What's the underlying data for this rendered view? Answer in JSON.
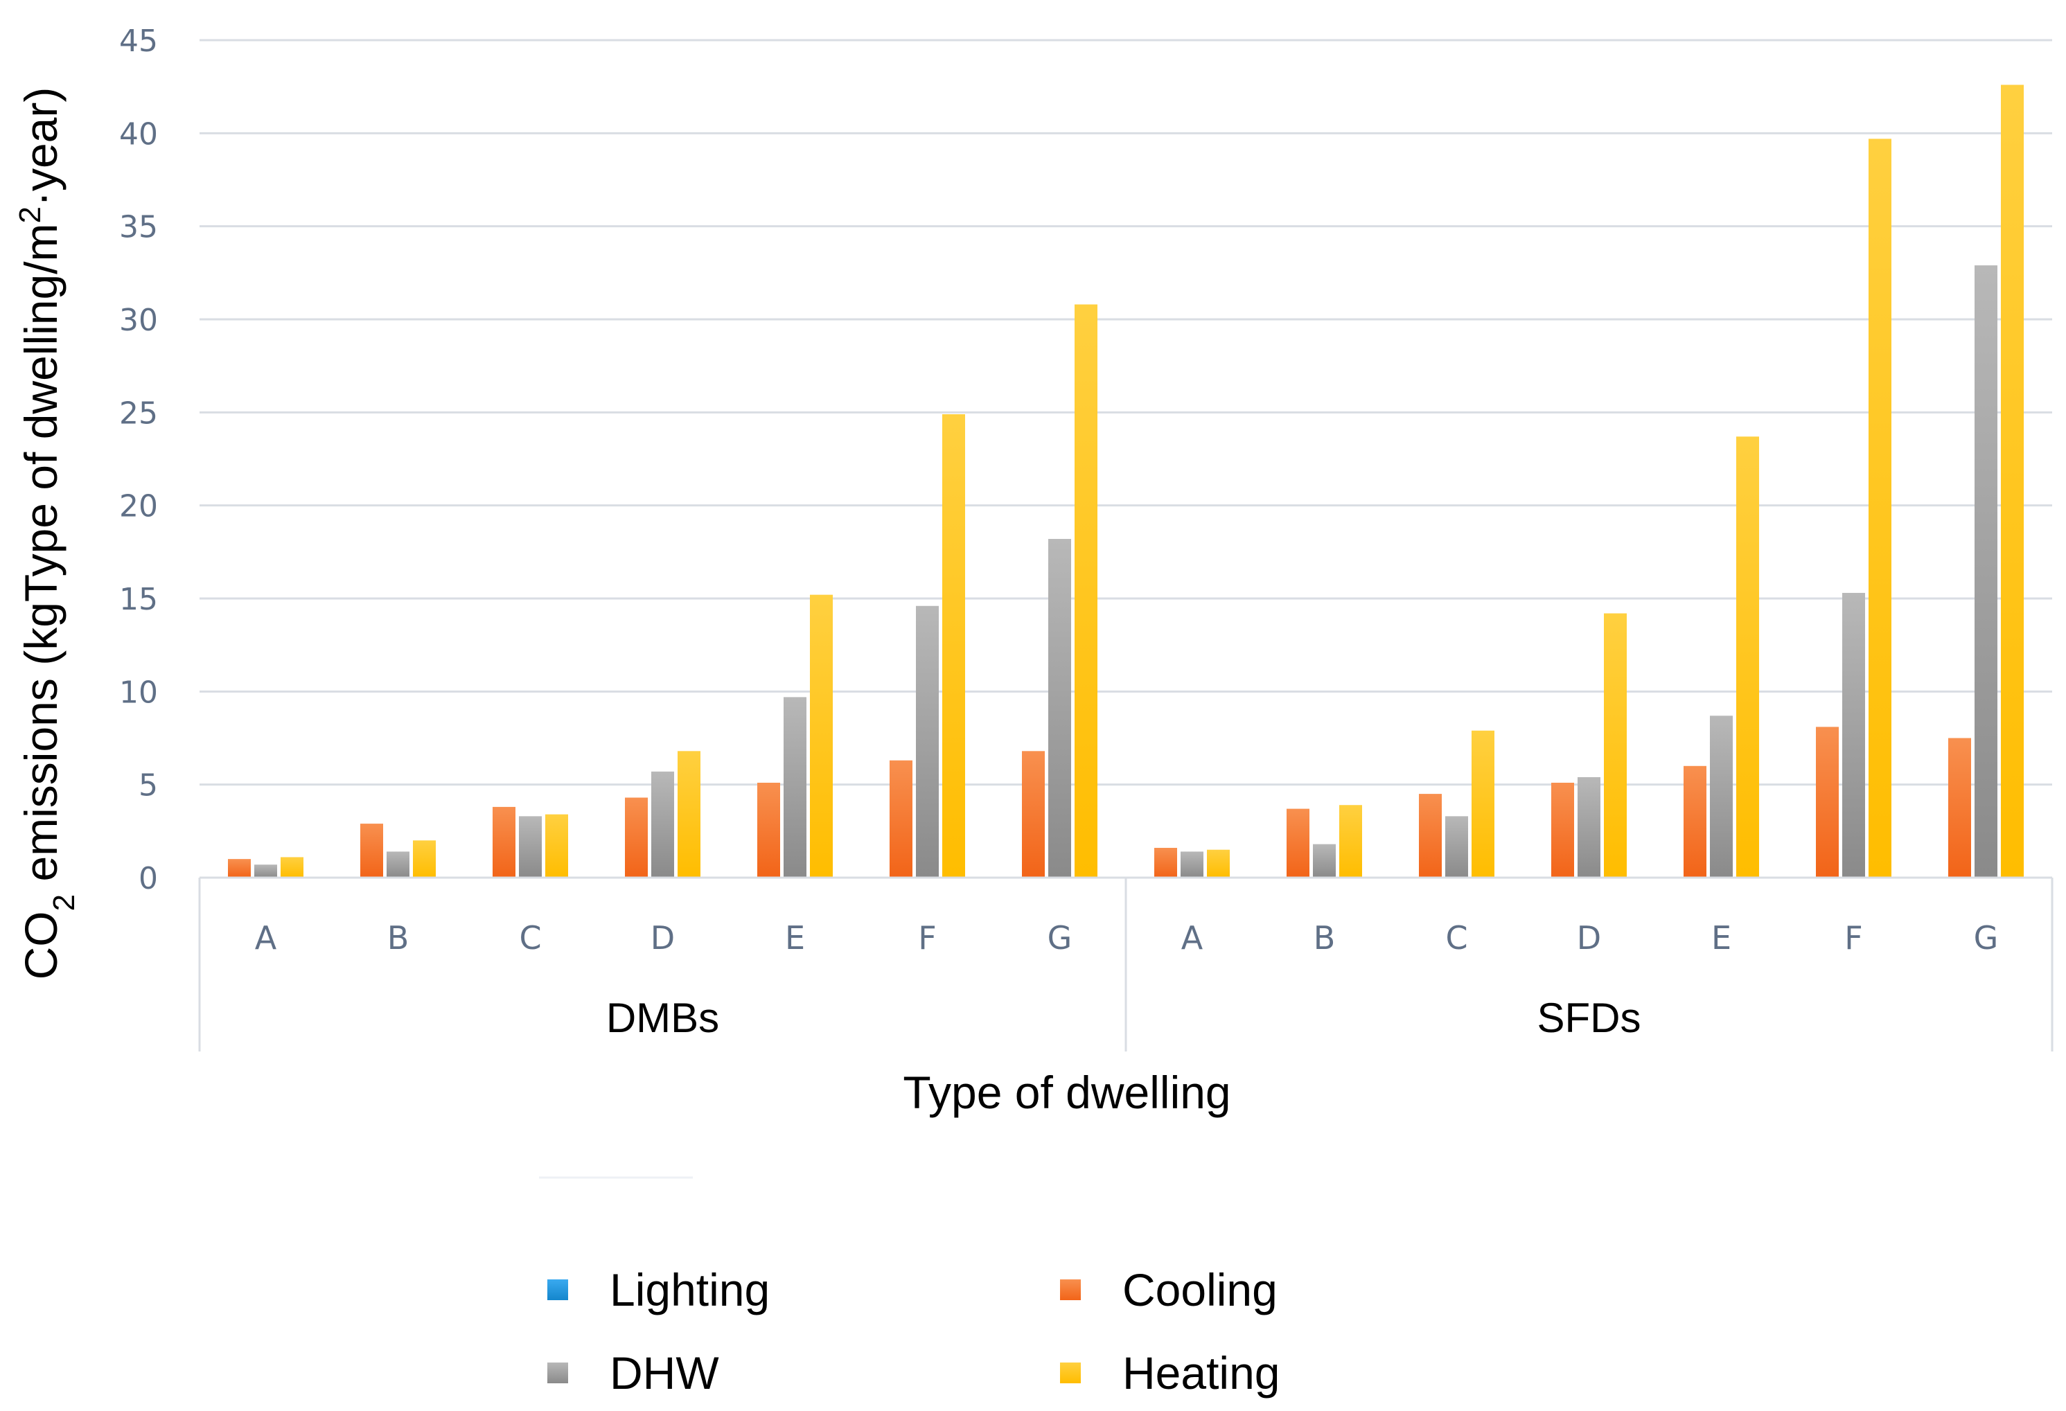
{
  "chart_data": {
    "type": "bar",
    "title": "",
    "xlabel": "Type of dwelling",
    "ylabel": {
      "prefix": "CO",
      "sub": "2",
      "middle": " emissions (kgType of dwelling/m",
      "sup": "2",
      "suffix": "·year)"
    },
    "ylim": [
      0,
      45
    ],
    "yticks": [
      "0",
      "5",
      "10",
      "15",
      "20",
      "25",
      "30",
      "35",
      "40",
      "45"
    ],
    "grid": true,
    "legend_position": "bottom",
    "groups": [
      {
        "name": "DMBs",
        "categories": [
          "A",
          "B",
          "C",
          "D",
          "E",
          "F",
          "G"
        ],
        "series": [
          {
            "name": "Lighting",
            "values": [
              0,
              0,
              0,
              0,
              0,
              0,
              0
            ]
          },
          {
            "name": "Cooling",
            "values": [
              1.0,
              2.9,
              3.8,
              4.3,
              5.1,
              6.3,
              6.8
            ]
          },
          {
            "name": "DHW",
            "values": [
              0.7,
              1.4,
              3.3,
              5.7,
              9.7,
              14.6,
              18.2
            ]
          },
          {
            "name": "Heating",
            "values": [
              1.1,
              2.0,
              3.4,
              6.8,
              15.2,
              24.9,
              30.8
            ]
          }
        ]
      },
      {
        "name": "SFDs",
        "categories": [
          "A",
          "B",
          "C",
          "D",
          "E",
          "F",
          "G"
        ],
        "series": [
          {
            "name": "Lighting",
            "values": [
              0,
              0,
              0,
              0,
              0,
              0,
              0
            ]
          },
          {
            "name": "Cooling",
            "values": [
              1.6,
              3.7,
              4.5,
              5.1,
              6.0,
              8.1,
              7.5
            ]
          },
          {
            "name": "DHW",
            "values": [
              1.4,
              1.8,
              3.3,
              5.4,
              8.7,
              15.3,
              32.9
            ]
          },
          {
            "name": "Heating",
            "values": [
              1.5,
              3.9,
              7.9,
              14.2,
              23.7,
              39.7,
              42.6
            ]
          }
        ]
      }
    ],
    "legend": [
      {
        "name": "Lighting",
        "color": "#1b98e0"
      },
      {
        "name": "Cooling",
        "color": "#f5701f"
      },
      {
        "name": "DHW",
        "color": "#9d9d9d"
      },
      {
        "name": "Heating",
        "color": "#ffc000"
      }
    ],
    "colors": {
      "Lighting": "#1b98e0",
      "Cooling": "#f5701f",
      "DHW": "#9d9d9d",
      "Heating": "#ffc000"
    }
  }
}
